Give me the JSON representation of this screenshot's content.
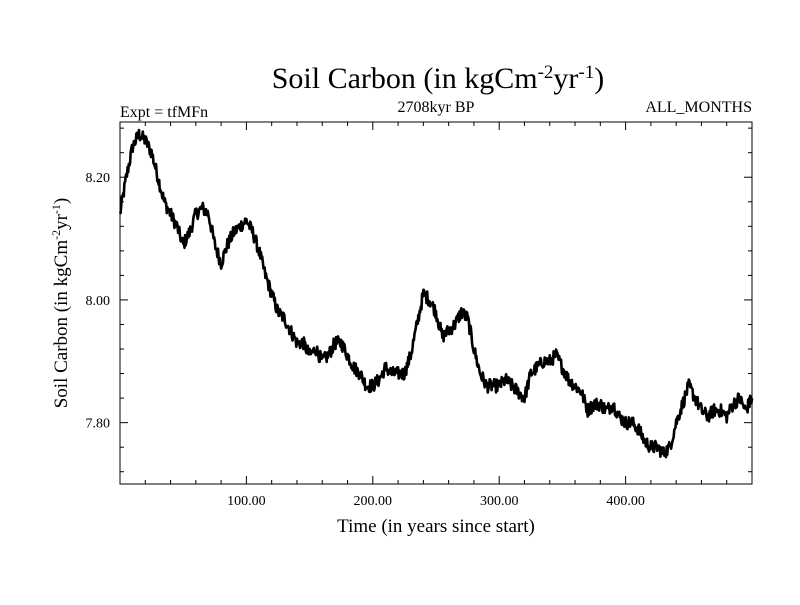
{
  "chart_data": {
    "type": "line",
    "title": "Soil Carbon (in kgCm",
    "title_sup1": "-2",
    "title_mid": "yr",
    "title_sup2": "-1",
    "title_end": ")",
    "experiment_label": "Expt = tfMFn",
    "period_label": "2708kyr BP",
    "months_label": "ALL_MONTHS",
    "xlabel": "Time (in years since start)",
    "ylabel": "Soil Carbon (in kgCm",
    "ylabel_sup1": "-2",
    "ylabel_mid": "yr",
    "ylabel_sup2": "-1",
    "ylabel_end": ")",
    "xlim": [
      0,
      500
    ],
    "ylim": [
      7.7,
      8.29
    ],
    "xticks": [
      {
        "value": 100,
        "label": "100.00"
      },
      {
        "value": 200,
        "label": "200.00"
      },
      {
        "value": 300,
        "label": "300.00"
      },
      {
        "value": 400,
        "label": "400.00"
      }
    ],
    "yticks": [
      {
        "value": 7.8,
        "label": "7.80"
      },
      {
        "value": 8.0,
        "label": "8.00"
      },
      {
        "value": 8.2,
        "label": "8.20"
      }
    ],
    "series": [
      {
        "name": "Soil Carbon",
        "color": "#000000",
        "x": [
          0,
          5,
          10,
          15,
          20,
          25,
          30,
          35,
          40,
          45,
          50,
          55,
          60,
          65,
          70,
          75,
          80,
          85,
          90,
          95,
          100,
          105,
          110,
          115,
          120,
          125,
          130,
          135,
          140,
          145,
          150,
          155,
          160,
          165,
          170,
          175,
          180,
          185,
          190,
          195,
          200,
          205,
          210,
          215,
          220,
          225,
          230,
          235,
          240,
          245,
          250,
          255,
          260,
          265,
          270,
          275,
          280,
          285,
          290,
          295,
          300,
          305,
          310,
          315,
          320,
          325,
          330,
          335,
          340,
          345,
          350,
          355,
          360,
          365,
          370,
          375,
          380,
          385,
          390,
          395,
          400,
          405,
          410,
          415,
          420,
          425,
          430,
          435,
          440,
          445,
          450,
          455,
          460,
          465,
          470,
          475,
          480,
          485,
          490,
          495,
          500
        ],
        "y": [
          8.14,
          8.2,
          8.25,
          8.27,
          8.26,
          8.24,
          8.2,
          8.16,
          8.14,
          8.12,
          8.09,
          8.11,
          8.14,
          8.15,
          8.14,
          8.09,
          8.06,
          8.09,
          8.11,
          8.12,
          8.13,
          8.11,
          8.08,
          8.04,
          8.01,
          7.98,
          7.97,
          7.95,
          7.93,
          7.93,
          7.91,
          7.92,
          7.9,
          7.91,
          7.93,
          7.93,
          7.91,
          7.89,
          7.88,
          7.86,
          7.86,
          7.87,
          7.89,
          7.88,
          7.88,
          7.88,
          7.91,
          7.96,
          8.01,
          8.0,
          7.98,
          7.94,
          7.95,
          7.96,
          7.98,
          7.97,
          7.92,
          7.88,
          7.86,
          7.86,
          7.86,
          7.87,
          7.86,
          7.85,
          7.84,
          7.88,
          7.89,
          7.9,
          7.9,
          7.91,
          7.89,
          7.87,
          7.86,
          7.85,
          7.82,
          7.83,
          7.83,
          7.82,
          7.83,
          7.81,
          7.8,
          7.8,
          7.79,
          7.77,
          7.76,
          7.76,
          7.75,
          7.76,
          7.8,
          7.83,
          7.86,
          7.84,
          7.82,
          7.81,
          7.82,
          7.82,
          7.81,
          7.83,
          7.84,
          7.82,
          7.84
        ]
      }
    ]
  }
}
